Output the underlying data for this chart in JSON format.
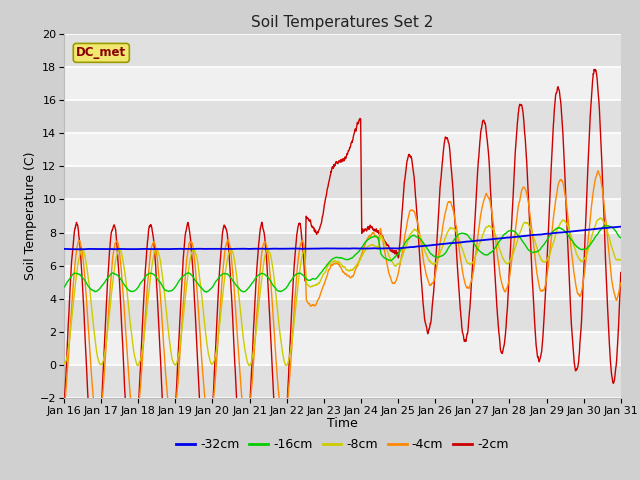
{
  "title": "Soil Temperatures Set 2",
  "xlabel": "Time",
  "ylabel": "Soil Temperature (C)",
  "ylim": [
    -2,
    20
  ],
  "yticks": [
    -2,
    0,
    2,
    4,
    6,
    8,
    10,
    12,
    14,
    16,
    18,
    20
  ],
  "legend_label": "DC_met",
  "series_labels": [
    "-32cm",
    "-16cm",
    "-8cm",
    "-4cm",
    "-2cm"
  ],
  "series_colors": [
    "#0000ee",
    "#00cc00",
    "#cccc00",
    "#ff8800",
    "#cc0000"
  ],
  "x_tick_labels": [
    "Jan 16",
    "Jan 17",
    "Jan 18",
    "Jan 19",
    "Jan 20",
    "Jan 21",
    "Jan 22",
    "Jan 23",
    "Jan 24",
    "Jan 25",
    "Jan 26",
    "Jan 27",
    "Jan 28",
    "Jan 29",
    "Jan 30",
    "Jan 31"
  ],
  "fig_bg": "#d0d0d0",
  "ax_bg": "#f0f0f0",
  "band_color": "#e0e0e0"
}
